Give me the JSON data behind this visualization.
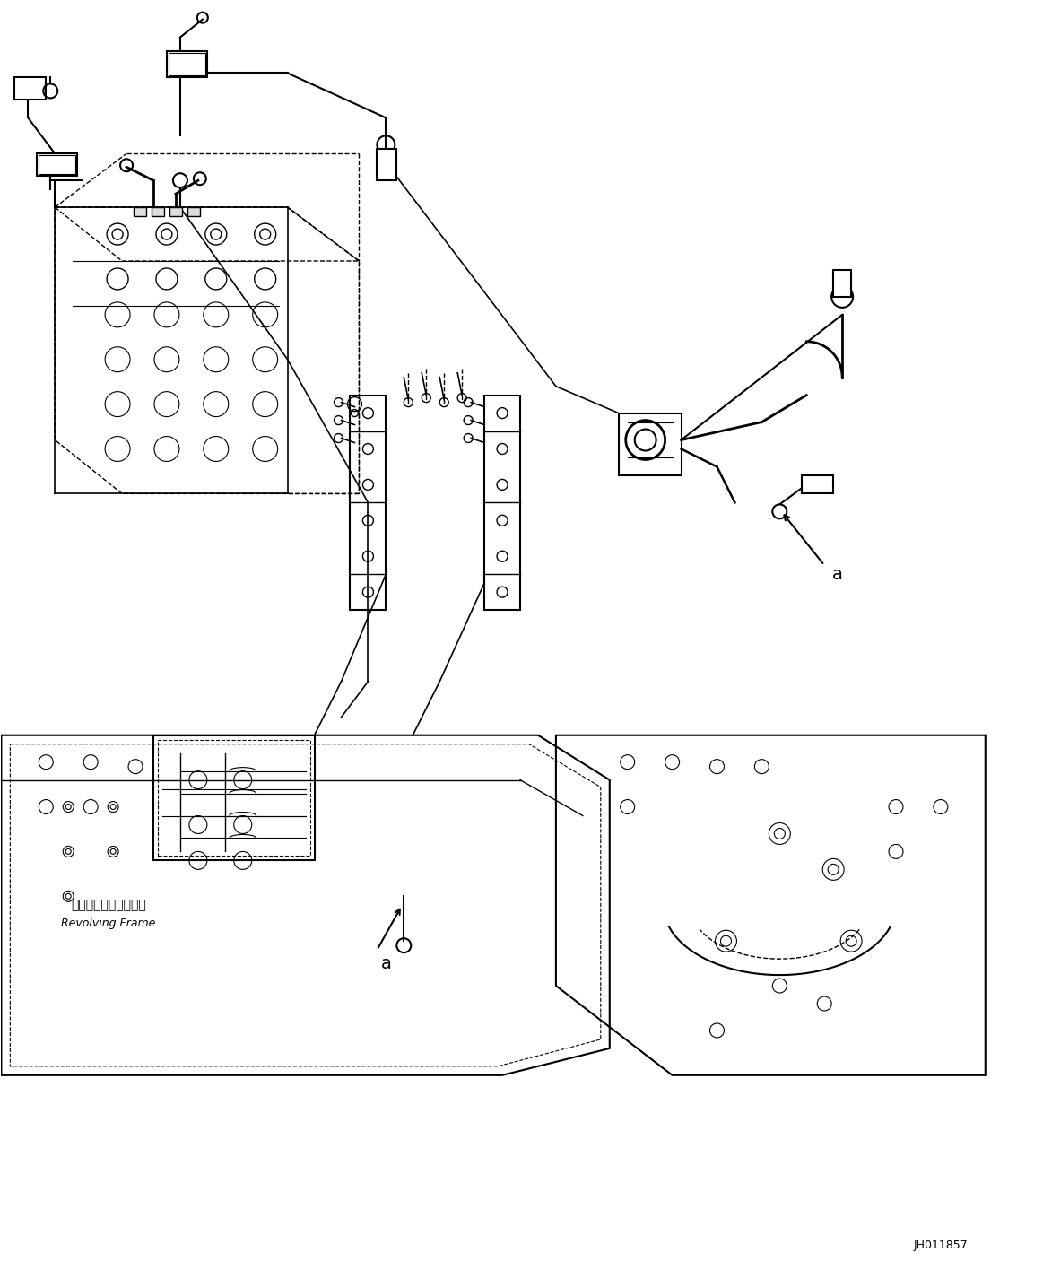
{
  "title": "",
  "background_color": "#ffffff",
  "line_color": "#000000",
  "dashed_color": "#000000",
  "fig_width": 11.63,
  "fig_height": 14.16,
  "dpi": 100,
  "watermark": "JH011857",
  "label_a1": "a",
  "label_a2": "a",
  "revolving_frame_jp": "レボルビングフレーム",
  "revolving_frame_en": "Revolving Frame"
}
